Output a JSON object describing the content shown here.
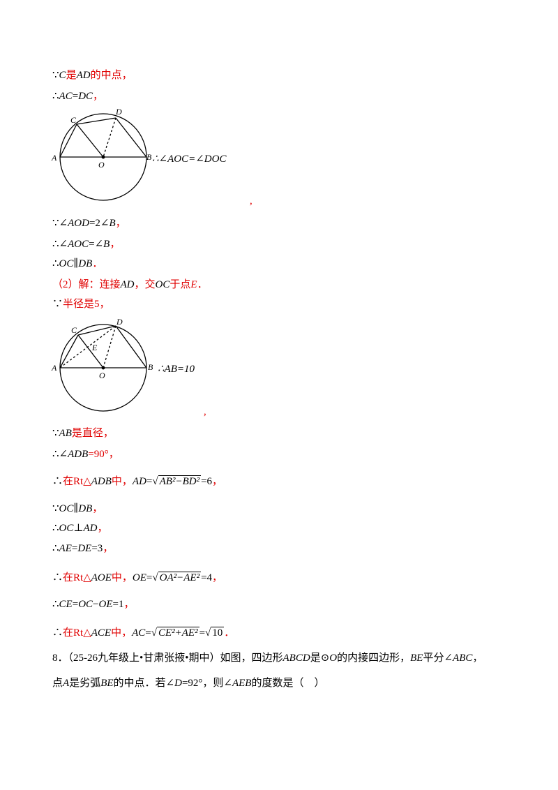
{
  "lines": [
    [
      {
        "text": "∵"
      },
      {
        "text": "C",
        "italic": true
      },
      {
        "text": "是",
        "color": "#e00000"
      },
      {
        "text": "AD",
        "italic": true
      },
      {
        "text": "的中点，",
        "color": "#e00000"
      }
    ],
    [
      {
        "text": "∴"
      },
      {
        "text": "AC",
        "italic": true
      },
      {
        "text": "="
      },
      {
        "text": "DC",
        "italic": true
      },
      {
        "text": "，",
        "color": "#e00000"
      }
    ],
    [
      {
        "text": "∵∠"
      },
      {
        "text": "AOD",
        "italic": true
      },
      {
        "text": "=2∠"
      },
      {
        "text": "B",
        "italic": true
      },
      {
        "text": "，",
        "color": "#e00000"
      }
    ],
    [
      {
        "text": "∴∠"
      },
      {
        "text": "AOC",
        "italic": true
      },
      {
        "text": "=∠"
      },
      {
        "text": "B",
        "italic": true
      },
      {
        "text": "，",
        "color": "#e00000"
      }
    ],
    [
      {
        "text": "∴"
      },
      {
        "text": "OC",
        "italic": true
      },
      {
        "text": "∥"
      },
      {
        "text": "DB",
        "italic": true
      },
      {
        "text": "．",
        "color": "#e00000"
      }
    ],
    [
      {
        "text": "（2）解：连接",
        "color": "#e00000"
      },
      {
        "text": "AD",
        "italic": true
      },
      {
        "text": "，交",
        "color": "#e00000"
      },
      {
        "text": "OC",
        "italic": true
      },
      {
        "text": "于点",
        "color": "#e00000"
      },
      {
        "text": "E",
        "italic": true,
        "color": "#e00000"
      },
      {
        "text": "．",
        "color": "#e00000"
      }
    ],
    [
      {
        "text": "∵"
      },
      {
        "text": "半径是5，",
        "color": "#e00000"
      }
    ],
    [
      {
        "text": "∵"
      },
      {
        "text": "AB",
        "italic": true
      },
      {
        "text": "是直径，",
        "color": "#e00000"
      }
    ],
    [
      {
        "text": "∴∠"
      },
      {
        "text": "ADB",
        "italic": true
      },
      {
        "text": "=90°，",
        "color": "#e00000"
      }
    ],
    [
      {
        "text": "∴"
      },
      {
        "text": "在Rt△",
        "color": "#e00000"
      },
      {
        "text": "ADB",
        "italic": true
      },
      {
        "text": "中，",
        "color": "#e00000"
      },
      {
        "text": "AD",
        "italic": true
      },
      {
        "text": "=√"
      },
      {
        "text": "AB²−BD²",
        "italic": true,
        "radicand": true
      },
      {
        "text": "=6"
      },
      {
        "text": "，",
        "color": "#e00000"
      }
    ],
    [
      {
        "text": "∵"
      },
      {
        "text": "OC",
        "italic": true
      },
      {
        "text": "∥"
      },
      {
        "text": "DB",
        "italic": true
      },
      {
        "text": "，",
        "color": "#e00000"
      }
    ],
    [
      {
        "text": "∴"
      },
      {
        "text": "OC",
        "italic": true
      },
      {
        "text": "⊥"
      },
      {
        "text": "AD",
        "italic": true
      },
      {
        "text": "，",
        "color": "#e00000"
      }
    ],
    [
      {
        "text": "∴"
      },
      {
        "text": "AE",
        "italic": true
      },
      {
        "text": "="
      },
      {
        "text": "DE",
        "italic": true
      },
      {
        "text": "=3"
      },
      {
        "text": "，",
        "color": "#e00000"
      }
    ],
    [
      {
        "text": "∴"
      },
      {
        "text": "在Rt△",
        "color": "#e00000"
      },
      {
        "text": "AOE",
        "italic": true
      },
      {
        "text": "中，",
        "color": "#e00000"
      },
      {
        "text": "OE",
        "italic": true
      },
      {
        "text": "=√"
      },
      {
        "text": "OA²−AE²",
        "italic": true,
        "radicand": true
      },
      {
        "text": "=4"
      },
      {
        "text": "，",
        "color": "#e00000"
      }
    ],
    [
      {
        "text": "∴"
      },
      {
        "text": "CE",
        "italic": true
      },
      {
        "text": "="
      },
      {
        "text": "OC",
        "italic": true
      },
      {
        "text": "−"
      },
      {
        "text": "OE",
        "italic": true
      },
      {
        "text": "=1"
      },
      {
        "text": "，",
        "color": "#e00000"
      }
    ],
    [
      {
        "text": "∴"
      },
      {
        "text": "在Rt△",
        "color": "#e00000"
      },
      {
        "text": "ACE",
        "italic": true
      },
      {
        "text": "中，",
        "color": "#e00000"
      },
      {
        "text": "AC",
        "italic": true
      },
      {
        "text": "=√"
      },
      {
        "text": "CE²+AE²",
        "italic": true,
        "radicand": true
      },
      {
        "text": "=√"
      },
      {
        "text": "10",
        "radicand": true
      },
      {
        "text": "．",
        "color": "#e00000"
      }
    ],
    [
      {
        "text": "8．（25-26九年级上•甘肃张掖•期中）如图，四边形"
      },
      {
        "text": "ABCD",
        "italic": true
      },
      {
        "text": "是⊙"
      },
      {
        "text": "O",
        "italic": true
      },
      {
        "text": "的内接四边形，"
      },
      {
        "text": "BE",
        "italic": true
      },
      {
        "text": "平分∠"
      },
      {
        "text": "ABC",
        "italic": true
      },
      {
        "text": "，"
      }
    ],
    [
      {
        "text": "点"
      },
      {
        "text": "A",
        "italic": true
      },
      {
        "text": "是劣弧"
      },
      {
        "text": "BE",
        "italic": true
      },
      {
        "text": "的中点．若∠"
      },
      {
        "text": "D",
        "italic": true
      },
      {
        "text": "=92°，则∠"
      },
      {
        "text": "AEB",
        "italic": true
      },
      {
        "text": "的度数是（　）"
      }
    ]
  ],
  "figure1": {
    "labels": [
      "A",
      "B",
      "C",
      "D",
      "O"
    ],
    "caption": "∴∠AOC=∠DOC",
    "comma": ","
  },
  "figure2": {
    "labels": [
      "A",
      "B",
      "C",
      "D",
      "E",
      "O"
    ],
    "caption": "∴AB=10",
    "comma": ","
  }
}
